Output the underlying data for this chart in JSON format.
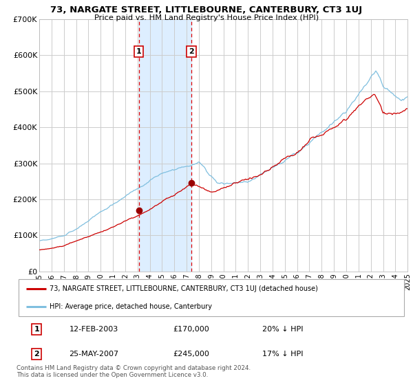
{
  "title": "73, NARGATE STREET, LITTLEBOURNE, CANTERBURY, CT3 1UJ",
  "subtitle": "Price paid vs. HM Land Registry's House Price Index (HPI)",
  "hpi_color": "#7fbfdf",
  "price_color": "#cc0000",
  "marker_color": "#990000",
  "bg_color": "#ffffff",
  "shade_color": "#ddeeff",
  "grid_color": "#cccccc",
  "ylim": [
    0,
    700000
  ],
  "yticks": [
    0,
    100000,
    200000,
    300000,
    400000,
    500000,
    600000,
    700000
  ],
  "ytick_labels": [
    "£0",
    "£100K",
    "£200K",
    "£300K",
    "£400K",
    "£500K",
    "£600K",
    "£700K"
  ],
  "sale1_date": 2003.1,
  "sale1_price": 170000,
  "sale1_label": "1",
  "sale2_date": 2007.38,
  "sale2_price": 245000,
  "sale2_label": "2",
  "legend_line1": "73, NARGATE STREET, LITTLEBOURNE, CANTERBURY, CT3 1UJ (detached house)",
  "legend_line2": "HPI: Average price, detached house, Canterbury",
  "table_row1": [
    "1",
    "12-FEB-2003",
    "£170,000",
    "20% ↓ HPI"
  ],
  "table_row2": [
    "2",
    "25-MAY-2007",
    "£245,000",
    "17% ↓ HPI"
  ],
  "footnote": "Contains HM Land Registry data © Crown copyright and database right 2024.\nThis data is licensed under the Open Government Licence v3.0.",
  "start_year": 1995,
  "end_year": 2025
}
